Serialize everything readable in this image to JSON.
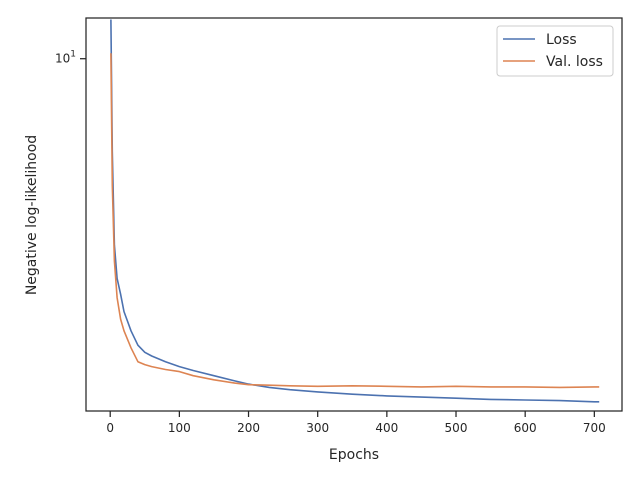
{
  "chart_data": {
    "type": "line",
    "title": "",
    "xlabel": "Epochs",
    "ylabel": "Negative log-likelihood",
    "xlim": [
      -35,
      740
    ],
    "ylim": [
      1.45,
      12.5
    ],
    "yscale": "log",
    "x_ticks": [
      0,
      100,
      200,
      300,
      400,
      500,
      600,
      700
    ],
    "x_tick_labels": [
      "0",
      "100",
      "200",
      "300",
      "400",
      "500",
      "600",
      "700"
    ],
    "y_ticks": [
      10
    ],
    "y_tick_base": "10",
    "y_tick_exp": "1",
    "legend_position": "top-right",
    "grid": false,
    "series": [
      {
        "name": "Loss",
        "color": "#4c72b0",
        "x": [
          1,
          3,
          6,
          10,
          15,
          20,
          30,
          40,
          50,
          60,
          80,
          100,
          120,
          150,
          180,
          200,
          230,
          260,
          300,
          350,
          400,
          450,
          500,
          550,
          600,
          650,
          700,
          707
        ],
        "y": [
          12.4,
          6.0,
          3.6,
          3.0,
          2.75,
          2.5,
          2.25,
          2.08,
          2.0,
          1.96,
          1.9,
          1.85,
          1.81,
          1.76,
          1.71,
          1.68,
          1.65,
          1.63,
          1.61,
          1.59,
          1.575,
          1.565,
          1.555,
          1.545,
          1.54,
          1.535,
          1.525,
          1.525
        ]
      },
      {
        "name": "Val. loss",
        "color": "#dd8452",
        "x": [
          1,
          3,
          6,
          10,
          15,
          20,
          30,
          40,
          50,
          60,
          80,
          100,
          120,
          150,
          180,
          200,
          230,
          260,
          300,
          350,
          400,
          450,
          500,
          550,
          600,
          650,
          700,
          707
        ],
        "y": [
          10.3,
          5.0,
          3.3,
          2.7,
          2.4,
          2.25,
          2.05,
          1.9,
          1.87,
          1.85,
          1.82,
          1.8,
          1.76,
          1.72,
          1.69,
          1.675,
          1.67,
          1.665,
          1.66,
          1.665,
          1.66,
          1.655,
          1.66,
          1.655,
          1.655,
          1.65,
          1.655,
          1.655
        ]
      }
    ]
  }
}
